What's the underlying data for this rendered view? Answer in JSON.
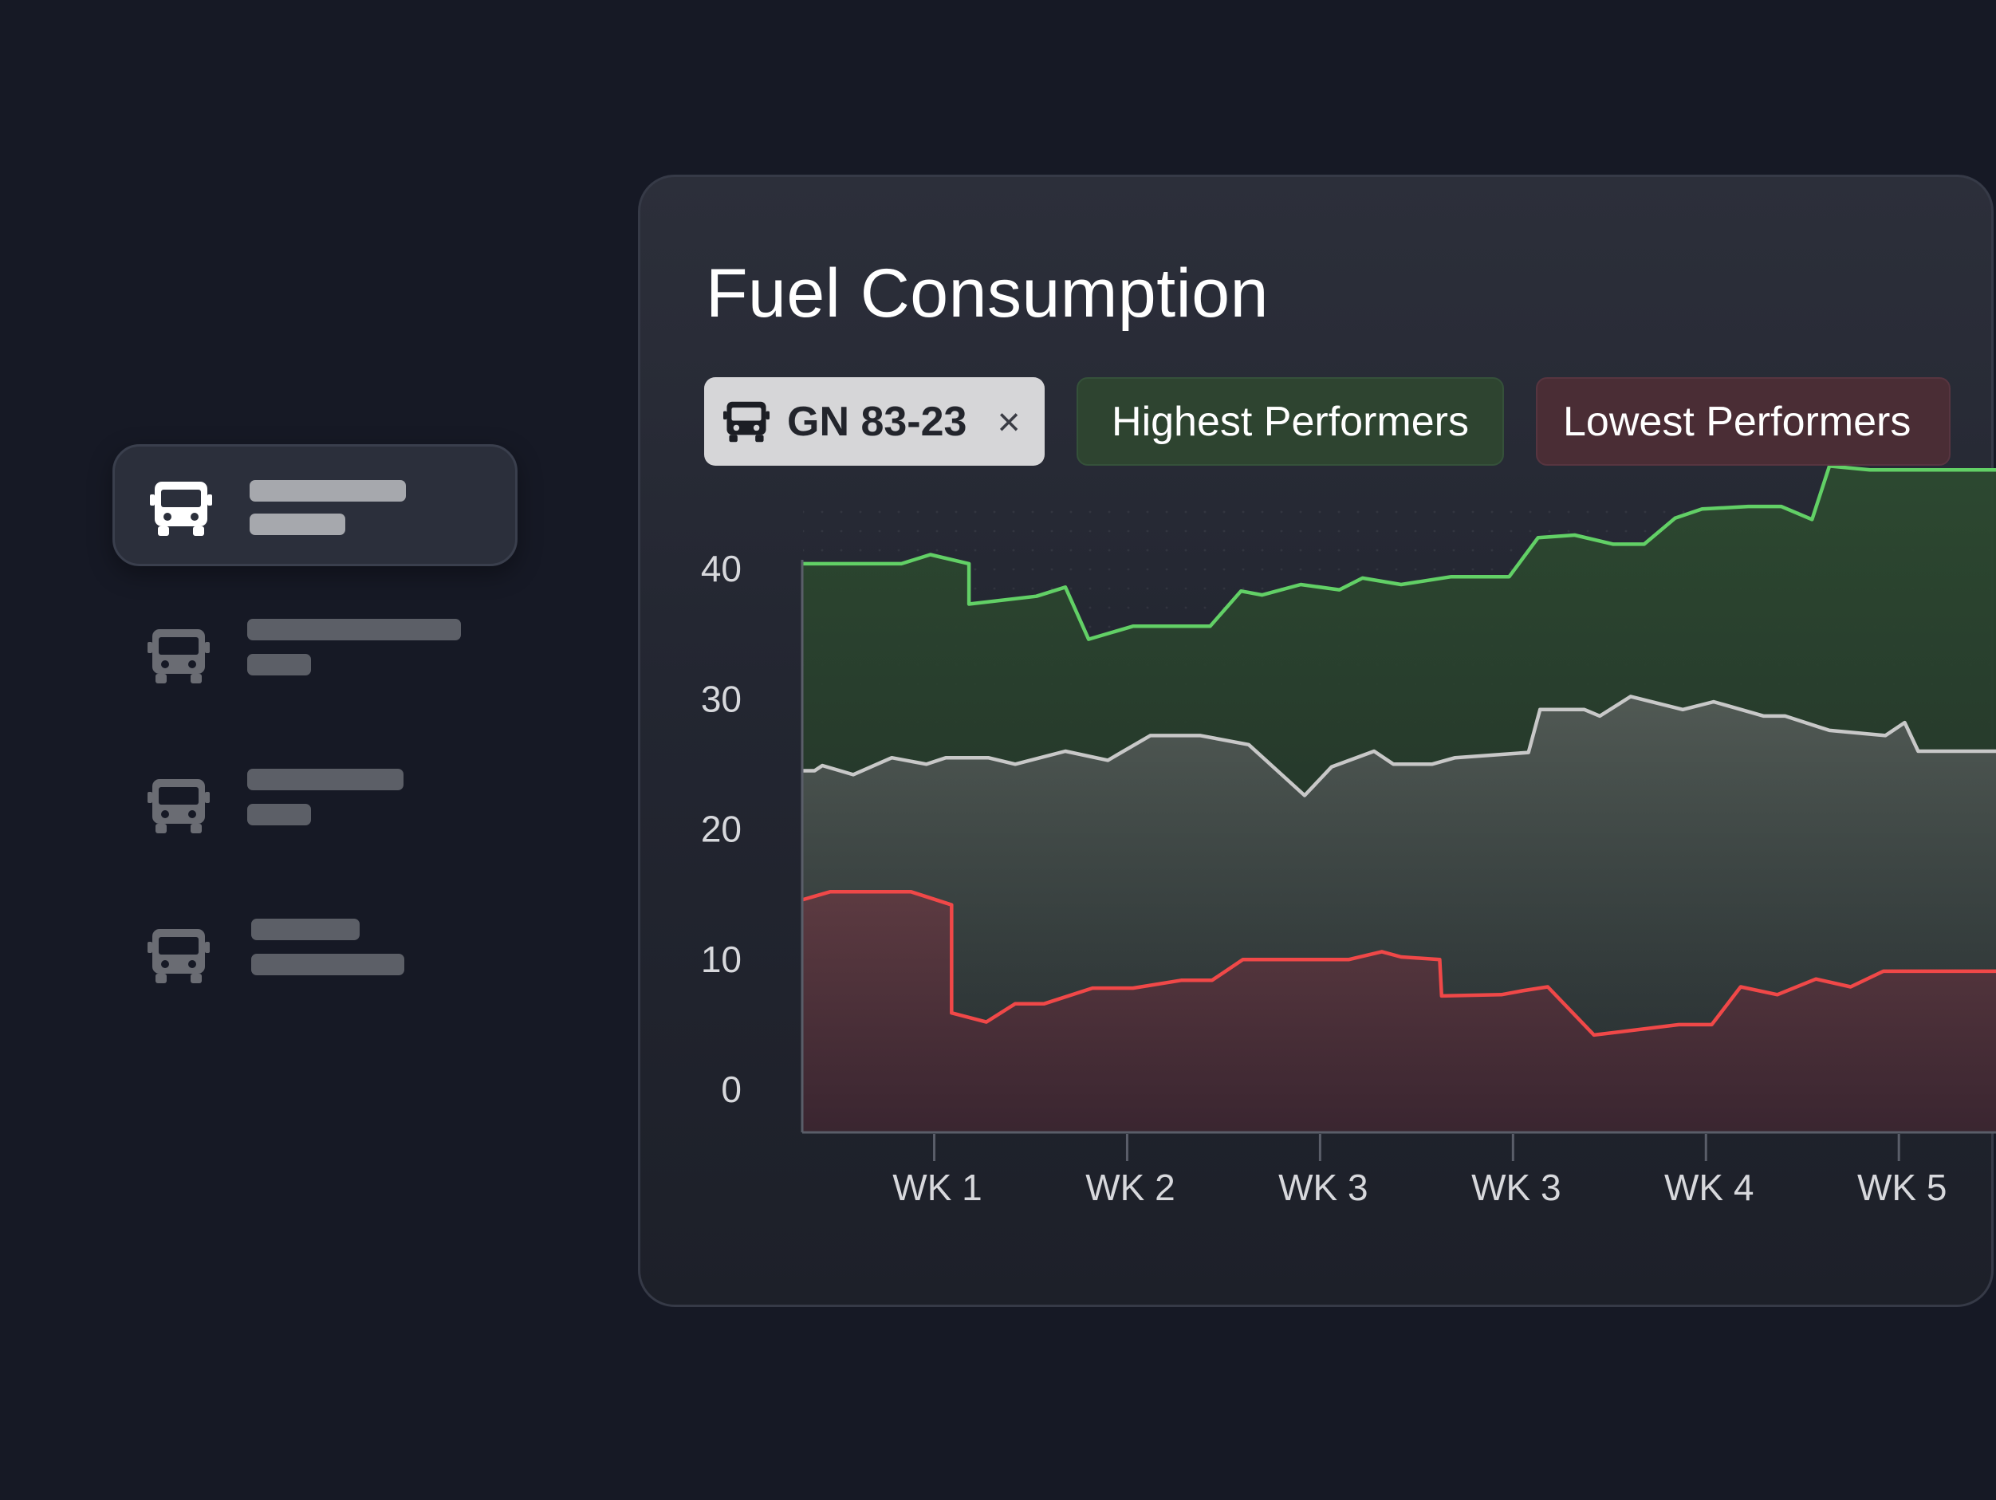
{
  "icons": {
    "vehicle": "bus-icon",
    "remove": "close-icon"
  },
  "vehicle_list": {
    "items": [
      {
        "state": "selected"
      },
      {
        "state": "normal"
      },
      {
        "state": "normal"
      },
      {
        "state": "normal"
      }
    ]
  },
  "card": {
    "title": "Fuel Consumption",
    "filters": {
      "vehicle_chip_label": "GN 83-23",
      "vehicle_chip_close": "×",
      "highest_label": "Highest Performers",
      "lowest_label": "Lowest Performers"
    }
  },
  "colors": {
    "background": "#161925",
    "card": "#262934",
    "high_line": "#62d066",
    "vehicle_line": "#c8c8c8",
    "low_line": "#f04848"
  },
  "chart_data": {
    "type": "area",
    "title": "",
    "xlabel": "",
    "ylabel": "",
    "ylim": [
      -3,
      46
    ],
    "yticks": [
      0,
      10,
      20,
      30,
      40
    ],
    "xlim": [
      0,
      6.2
    ],
    "xticks": [
      {
        "label": "WK 1",
        "x": 0.68
      },
      {
        "label": "WK 2",
        "x": 1.68
      },
      {
        "label": "WK 3",
        "x": 2.68
      },
      {
        "label": "WK 3",
        "x": 3.68
      },
      {
        "label": "WK 4",
        "x": 4.68
      },
      {
        "label": "WK 5",
        "x": 5.68
      }
    ],
    "grid": false,
    "legend": "none",
    "series": [
      {
        "name": "Highest Performers",
        "color": "#62d066",
        "fill_top": "#2d4a30",
        "fill_bottom": "#1f2a26",
        "x": [
          0,
          0.24,
          0.51,
          0.66,
          0.86,
          0.86,
          1.21,
          1.36,
          1.48,
          1.71,
          2.11,
          2.27,
          2.38,
          2.58,
          2.78,
          2.9,
          3.1,
          3.36,
          3.66,
          3.81,
          4.0,
          4.2,
          4.36,
          4.52,
          4.66,
          4.9,
          5.07,
          5.23,
          5.32,
          5.53,
          5.71,
          6.2
        ],
        "y": [
          40.8,
          40.8,
          40.8,
          41.5,
          40.8,
          37.7,
          38.3,
          39.0,
          35.0,
          36.0,
          36.0,
          38.7,
          38.4,
          39.2,
          38.8,
          39.7,
          39.2,
          39.8,
          39.8,
          42.8,
          43.0,
          42.3,
          42.3,
          44.3,
          45.0,
          45.2,
          45.2,
          44.2,
          48.3,
          48.0,
          48.0,
          48.0
        ]
      },
      {
        "name": "GN 83-23",
        "color": "#c8c8c8",
        "fill_top": "#585e5b",
        "fill_bottom": "#2a2e37",
        "x": [
          0,
          0.06,
          0.1,
          0.26,
          0.46,
          0.64,
          0.74,
          0.96,
          1.1,
          1.36,
          1.58,
          1.8,
          1.97,
          2.06,
          2.31,
          2.6,
          2.74,
          2.96,
          3.06,
          3.26,
          3.38,
          3.76,
          3.82,
          4.05,
          4.13,
          4.29,
          4.56,
          4.72,
          4.98,
          5.09,
          5.32,
          5.61,
          5.71,
          5.78,
          6.2
        ],
        "y": [
          24.9,
          24.9,
          25.3,
          24.6,
          25.9,
          25.4,
          25.9,
          25.9,
          25.4,
          26.4,
          25.7,
          27.6,
          27.6,
          27.6,
          26.9,
          23.0,
          25.2,
          26.4,
          25.4,
          25.4,
          25.9,
          26.3,
          29.6,
          29.6,
          29.1,
          30.6,
          29.6,
          30.2,
          29.1,
          29.1,
          28.0,
          27.6,
          28.6,
          26.4,
          26.4
        ]
      },
      {
        "name": "Lowest Performers",
        "color": "#f04848",
        "fill_top": "#5e3a41",
        "fill_bottom": "#3b2530",
        "x": [
          0,
          0.14,
          0.56,
          0.77,
          0.77,
          0.95,
          1.1,
          1.25,
          1.5,
          1.71,
          1.96,
          2.12,
          2.28,
          2.62,
          2.83,
          3.0,
          3.1,
          3.3,
          3.31,
          3.62,
          3.73,
          3.86,
          4.1,
          4.54,
          4.71,
          4.86,
          5.05,
          5.25,
          5.43,
          5.6,
          6.2
        ],
        "y": [
          15.0,
          15.6,
          15.6,
          14.6,
          6.3,
          5.6,
          7.0,
          7.0,
          8.2,
          8.2,
          8.8,
          8.8,
          10.4,
          10.4,
          10.4,
          11.0,
          10.6,
          10.4,
          7.6,
          7.7,
          8.0,
          8.3,
          4.6,
          5.4,
          5.4,
          8.3,
          7.7,
          8.9,
          8.3,
          9.5,
          9.5
        ]
      }
    ]
  }
}
